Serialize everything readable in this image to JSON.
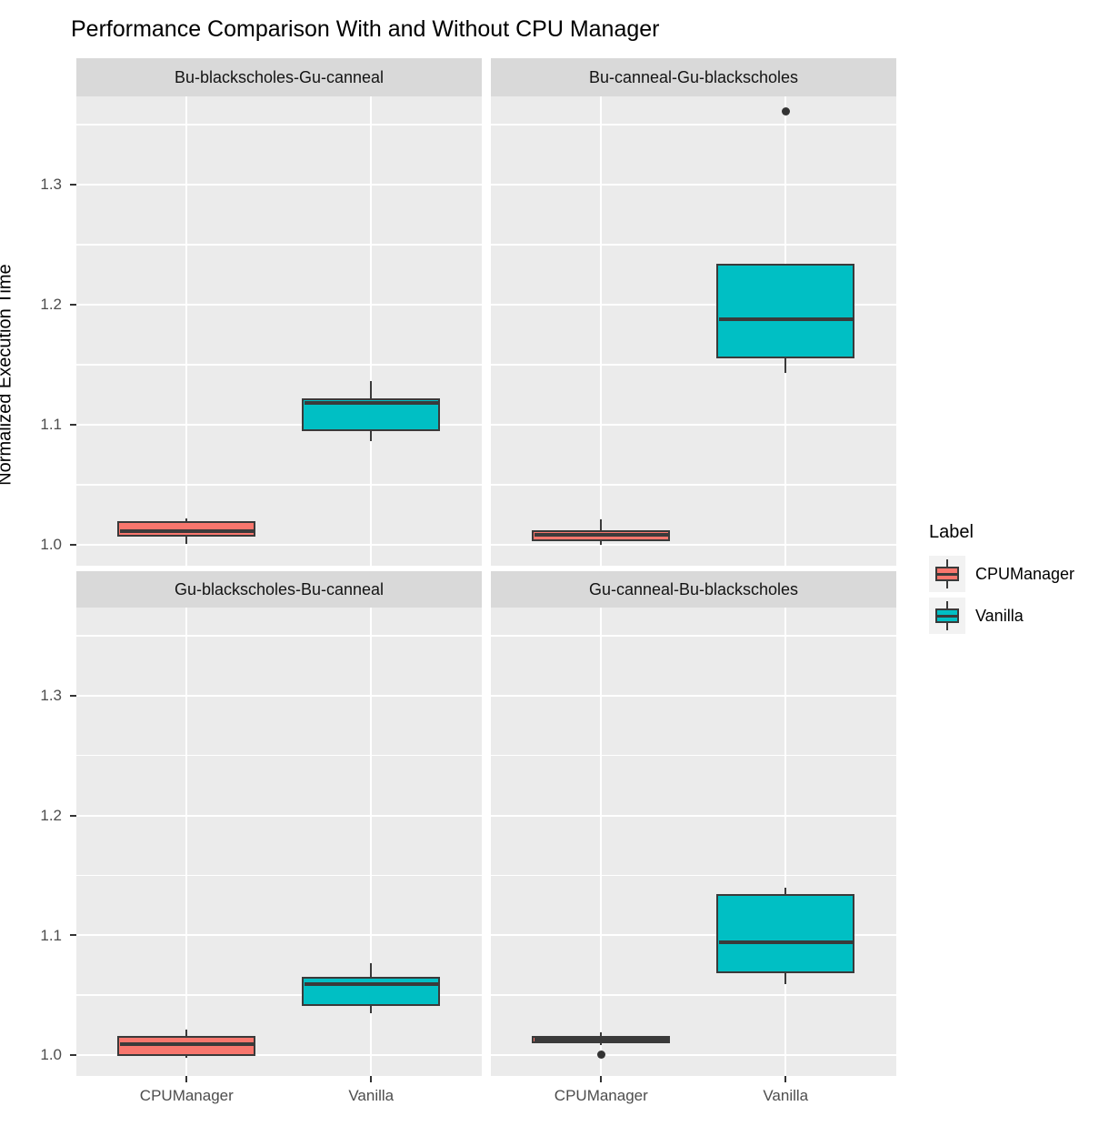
{
  "title": "Performance Comparison With and Without CPU Manager",
  "y_axis": {
    "title": "Normalized Execution Time",
    "tick_labels": [
      "1.3",
      "1.2",
      "1.1",
      "1.0"
    ]
  },
  "x_axis": {
    "categories": [
      "CPUManager",
      "Vanilla"
    ]
  },
  "legend": {
    "title": "Label",
    "entries": [
      {
        "label": "CPUManager",
        "color": "#F8766D"
      },
      {
        "label": "Vanilla",
        "color": "#00BFC4"
      }
    ]
  },
  "colors": {
    "panel_background": "#EBEBEB",
    "strip_background": "#D9D9D9",
    "gridline": "#FFFFFF",
    "box_outline": "#3A3A3A",
    "cpumanager_fill": "#F8766D",
    "vanilla_fill": "#00BFC4",
    "tick_text": "#4D4D4D",
    "outlier": "#333333"
  },
  "chart_data": {
    "type": "boxplot",
    "title": "Performance Comparison With and Without CPU Manager",
    "xlabel": "",
    "ylabel": "Normalized Execution Time",
    "categories": [
      "CPUManager",
      "Vanilla"
    ],
    "series_colors": {
      "CPUManager": "#F8766D",
      "Vanilla": "#00BFC4"
    },
    "y_ticks": [
      1.0,
      1.1,
      1.2,
      1.3
    ],
    "y_minor_ticks": [
      1.05,
      1.15,
      1.25,
      1.35
    ],
    "ylim": [
      0.982,
      1.374
    ],
    "grid": true,
    "legend_position": "right",
    "facet_layout": [
      "row-major",
      2,
      2
    ],
    "facets": [
      {
        "label": "Bu-blackscholes-Gu-canneal",
        "boxes": [
          {
            "group": "CPUManager",
            "whisker_low": 1.001,
            "q1": 1.007,
            "median": 1.011,
            "q3": 1.02,
            "whisker_high": 1.022,
            "outliers": []
          },
          {
            "group": "Vanilla",
            "whisker_low": 1.086,
            "q1": 1.095,
            "median": 1.118,
            "q3": 1.122,
            "whisker_high": 1.136,
            "outliers": []
          }
        ]
      },
      {
        "label": "Bu-canneal-Gu-blackscholes",
        "boxes": [
          {
            "group": "CPUManager",
            "whisker_low": 1.0,
            "q1": 1.003,
            "median": 1.008,
            "q3": 1.012,
            "whisker_high": 1.021,
            "outliers": []
          },
          {
            "group": "Vanilla",
            "whisker_low": 1.143,
            "q1": 1.155,
            "median": 1.188,
            "q3": 1.234,
            "whisker_high": 1.234,
            "outliers": [
              1.361
            ]
          }
        ]
      },
      {
        "label": "Gu-blackscholes-Bu-canneal",
        "boxes": [
          {
            "group": "CPUManager",
            "whisker_low": 0.998,
            "q1": 0.999,
            "median": 1.009,
            "q3": 1.016,
            "whisker_high": 1.021,
            "outliers": []
          },
          {
            "group": "Vanilla",
            "whisker_low": 1.035,
            "q1": 1.041,
            "median": 1.059,
            "q3": 1.065,
            "whisker_high": 1.077,
            "outliers": []
          }
        ]
      },
      {
        "label": "Gu-canneal-Bu-blackscholes",
        "boxes": [
          {
            "group": "CPUManager",
            "whisker_low": 1.008,
            "q1": 1.01,
            "median": 1.013,
            "q3": 1.016,
            "whisker_high": 1.019,
            "outliers": [
              1.0
            ]
          },
          {
            "group": "Vanilla",
            "whisker_low": 1.059,
            "q1": 1.068,
            "median": 1.094,
            "q3": 1.134,
            "whisker_high": 1.14,
            "outliers": []
          }
        ]
      }
    ]
  }
}
